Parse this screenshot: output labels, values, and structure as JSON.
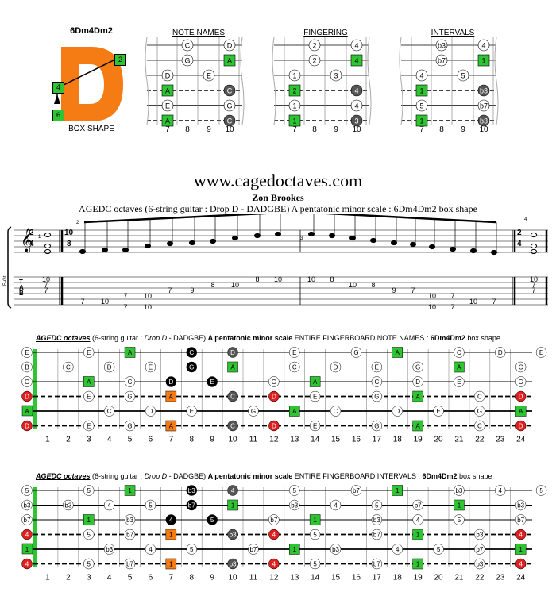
{
  "header": {
    "shape_name": "6Dm4Dm2",
    "big_letter": "D",
    "box_shape_label": "BOX SHAPE",
    "shape_markers": [
      "2",
      "4",
      "6"
    ],
    "diagram_titles": [
      "NOTE NAMES",
      "FINGERING",
      "INTERVALS"
    ],
    "frets": [
      "7",
      "8",
      "9",
      "10"
    ],
    "diagrams": {
      "notes": [
        [
          null,
          "C",
          null,
          "D"
        ],
        [
          null,
          "G",
          null,
          "A"
        ],
        [
          "D",
          null,
          "E",
          null
        ],
        [
          "A",
          null,
          null,
          "C"
        ],
        [
          "E",
          null,
          null,
          "G"
        ],
        [
          "A",
          null,
          null,
          "C"
        ]
      ],
      "fingering": [
        [
          null,
          "2",
          null,
          "4"
        ],
        [
          null,
          "2",
          null,
          "4"
        ],
        [
          "1",
          null,
          "3",
          null
        ],
        [
          "2",
          null,
          null,
          "4"
        ],
        [
          "1",
          null,
          null,
          "4"
        ],
        [
          "1",
          null,
          null,
          "3"
        ]
      ],
      "intervals": [
        [
          null,
          "b3",
          null,
          "4"
        ],
        [
          null,
          "b7",
          null,
          "1"
        ],
        [
          "4",
          null,
          "5",
          null
        ],
        [
          "1",
          null,
          null,
          "b3"
        ],
        [
          "5",
          null,
          null,
          "b7"
        ],
        [
          "1",
          null,
          null,
          "b3"
        ]
      ]
    }
  },
  "website": "www.cagedoctaves.com",
  "author": "Zon Brookes",
  "subtitle": "AGEDC octaves (6-string guitar : Drop D - DADGBE) A pentatonic minor scale : 6Dm4Dm2 box shape",
  "notation": {
    "staff_label": "E-Gt",
    "tab_letters": [
      "T",
      "A",
      "B"
    ],
    "time_sigs": [
      "2/4",
      "10/8",
      "2/4"
    ],
    "measure_numbers": [
      "1",
      "2",
      "3",
      "4"
    ],
    "tab_columns": [
      {
        "s1": "10",
        "s2": "7",
        "s3": "7"
      },
      {
        "s5": "7"
      },
      {
        "s5": "10"
      },
      {
        "s4": "7"
      },
      {
        "s4": "10"
      },
      {
        "s3": "7"
      },
      {
        "s3": "9"
      },
      {
        "s2": "8"
      },
      {
        "s2": "10"
      },
      {
        "s1": "8"
      },
      {
        "s1": "10"
      },
      {
        "s1": "10"
      },
      {
        "s1": "8"
      },
      {
        "s2": "10"
      },
      {
        "s2": "8"
      },
      {
        "s3": "9"
      },
      {
        "s3": "7"
      },
      {
        "s4": "10"
      },
      {
        "s4": "7"
      },
      {
        "s5": "10"
      },
      {
        "s5": "7"
      },
      {
        "s1": "10",
        "s2": "7",
        "s3": "7"
      }
    ],
    "col_s4_extra": {
      "3": "7",
      "4": "10"
    }
  },
  "fb1": {
    "title_parts": [
      "AGEDC octaves",
      " (6-string guitar : ",
      "Drop D",
      " - DADGBE) ",
      "A pentatonic minor scale",
      " ENTIRE FINGERBOARD NOTE NAMES : ",
      "6Dm4Dm2",
      " box shape"
    ],
    "open": [
      "E",
      "B",
      "G",
      "D",
      "A",
      "D"
    ],
    "strings": [
      [
        "",
        "",
        "",
        "E",
        "",
        "A",
        "",
        "",
        "C",
        "",
        "D",
        "",
        "",
        "E",
        "",
        "",
        "G",
        "",
        "A",
        "",
        "",
        "C",
        "",
        "D",
        "",
        "E"
      ],
      [
        "",
        "",
        "C",
        "",
        "D",
        "",
        "E",
        "",
        "G",
        "",
        "A",
        "",
        "",
        "C",
        "",
        "D",
        "",
        "E",
        "",
        "G",
        "",
        "A",
        "",
        "",
        "C"
      ],
      [
        "",
        "",
        "",
        "A",
        "",
        "C",
        "",
        "D",
        "",
        "E",
        "",
        "",
        "G",
        "",
        "A",
        "",
        "",
        "C",
        "",
        "D",
        "",
        "E",
        "",
        "",
        "G"
      ],
      [
        "",
        "",
        "",
        "E",
        "",
        "G",
        "",
        "A",
        "",
        "",
        "C",
        "",
        "D",
        "",
        "E",
        "",
        "",
        "G",
        "",
        "A",
        "",
        "",
        "C",
        "",
        "D"
      ],
      [
        "",
        "",
        "",
        "",
        "C",
        "",
        "D",
        "",
        "E",
        "",
        "",
        "G",
        "",
        "A",
        "",
        "C",
        "",
        "",
        "D",
        "",
        "E",
        "",
        "G",
        "",
        "A"
      ],
      [
        "",
        "",
        "",
        "E",
        "",
        "G",
        "",
        "A",
        "",
        "",
        "C",
        "",
        "D",
        "",
        "E",
        "",
        "",
        "G",
        "",
        "A",
        "",
        "",
        "C",
        "",
        "D"
      ]
    ],
    "fret_numbers": [
      "1",
      "2",
      "3",
      "4",
      "5",
      "6",
      "7",
      "8",
      "9",
      "10",
      "11",
      "12",
      "13",
      "14",
      "15",
      "16",
      "17",
      "18",
      "19",
      "20",
      "21",
      "22",
      "23",
      "24"
    ]
  },
  "fb2": {
    "title_parts": [
      "AGEDC octaves",
      " (6-string guitar : ",
      "Drop D",
      " - DADGBE) ",
      "A pentatonic minor scale",
      " ENTIRE FINGERBOARD INTERVALS : ",
      "6Dm4Dm2",
      " box shape"
    ],
    "open": [
      "5",
      "b3",
      "b7",
      "4",
      "1",
      "4"
    ]
  }
}
